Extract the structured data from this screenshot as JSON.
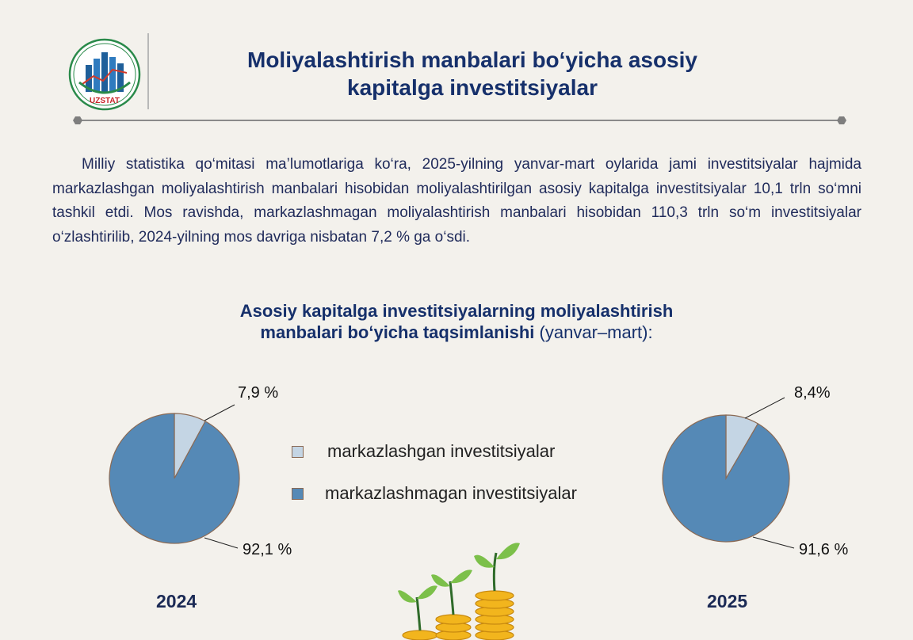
{
  "header": {
    "logo_text": "UZSTAT",
    "title_line1": "Moliyalashtirish manbalari bo‘yicha asosiy",
    "title_line2": "kapitalga investitsiyalar"
  },
  "body_text": "Milliy statistika qo‘mitasi ma’lumotlariga ko‘ra, 2025-yilning yanvar-mart oylarida jami investitsiyalar hajmida markazlashgan moliyalashtirish manbalari hisobidan moliyalashtirilgan asosiy kapitalga investitsiyalar 10,1 trln so‘mni tashkil etdi. Mos ravishda, markazlashmagan moliyalashtirish manbalari hisobidan 110,3 trln so‘m investitsiyalar o‘zlashtirilib, 2024-yilning mos davriga nisbatan 7,2 % ga o‘sdi.",
  "chart_heading": {
    "line1": "Asosiy kapitalga investitsiyalarning moliyalashtirish",
    "line2_bold": "manbalari bo‘yicha taqsimlanishi",
    "line2_rest": " (yanvar–mart):"
  },
  "chart_data": [
    {
      "type": "pie",
      "title": "2024",
      "categories": [
        "markazlashgan investitsiyalar",
        "markazlashmagan investitsiyalar"
      ],
      "values": [
        7.9,
        92.1
      ],
      "labels": [
        "7,9 %",
        "92,1 %"
      ],
      "colors": [
        "#c4d5e4",
        "#5589b6"
      ]
    },
    {
      "type": "pie",
      "title": "2025",
      "categories": [
        "markazlashgan investitsiyalar",
        "markazlashmagan investitsiyalar"
      ],
      "values": [
        8.4,
        91.6
      ],
      "labels": [
        "8,4%",
        "91,6 %"
      ],
      "colors": [
        "#c4d5e4",
        "#5589b6"
      ]
    }
  ],
  "legend": [
    {
      "label": "markazlashgan investitsiyalar",
      "color": "#c4d5e4"
    },
    {
      "label": "markazlashmagan investitsiyalar",
      "color": "#5589b6"
    }
  ],
  "colors": {
    "slice_border": "#8a6a55",
    "title": "#16306b",
    "leader_line": "#222222"
  }
}
